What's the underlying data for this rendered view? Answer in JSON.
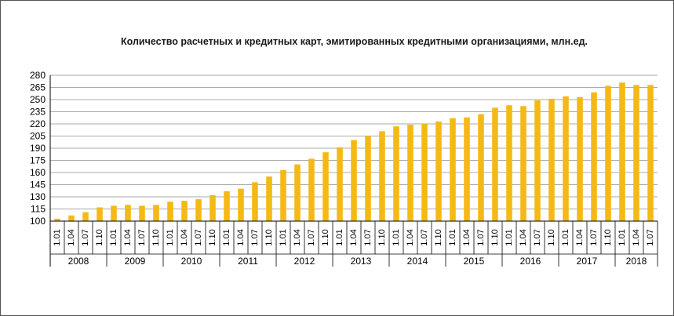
{
  "chart_data": {
    "type": "bar",
    "title": "Количество расчетных и кредитных карт, эмитированных кредитными организациями, млн.ед.",
    "xlabel": "",
    "ylabel": "",
    "ylim": [
      100,
      280
    ],
    "yticks": [
      100,
      115,
      130,
      145,
      160,
      175,
      190,
      205,
      220,
      235,
      250,
      265,
      280
    ],
    "grid": true,
    "bar_color": "#f5b915",
    "quarter_labels": [
      "1.01",
      "1.04",
      "1.07",
      "1.10"
    ],
    "groups": [
      {
        "year": "2008",
        "labels": [
          "1.01",
          "1.04",
          "1.07",
          "1.10"
        ],
        "values": [
          103,
          107,
          111,
          117
        ]
      },
      {
        "year": "2009",
        "labels": [
          "1.01",
          "1.04",
          "1.07",
          "1.10"
        ],
        "values": [
          119,
          120,
          119,
          120
        ]
      },
      {
        "year": "2010",
        "labels": [
          "1.01",
          "1.04",
          "1.07",
          "1.10"
        ],
        "values": [
          124,
          125,
          127,
          132
        ]
      },
      {
        "year": "2011",
        "labels": [
          "1.01",
          "1.04",
          "1.07",
          "1.10"
        ],
        "values": [
          137,
          140,
          148,
          155
        ]
      },
      {
        "year": "2012",
        "labels": [
          "1.01",
          "1.04",
          "1.07",
          "1.10"
        ],
        "values": [
          163,
          170,
          177,
          185
        ]
      },
      {
        "year": "2013",
        "labels": [
          "1.01",
          "1.04",
          "1.07",
          "1.10"
        ],
        "values": [
          191,
          200,
          205,
          211
        ]
      },
      {
        "year": "2014",
        "labels": [
          "1.01",
          "1.04",
          "1.07",
          "1.10"
        ],
        "values": [
          217,
          219,
          220,
          223
        ]
      },
      {
        "year": "2015",
        "labels": [
          "1.01",
          "1.04",
          "1.07",
          "1.10"
        ],
        "values": [
          227,
          228,
          232,
          240
        ]
      },
      {
        "year": "2016",
        "labels": [
          "1.01",
          "1.04",
          "1.07",
          "1.10"
        ],
        "values": [
          243,
          242,
          249,
          251
        ]
      },
      {
        "year": "2017",
        "labels": [
          "1.01",
          "1.04",
          "1.07",
          "1.10"
        ],
        "values": [
          254,
          253,
          259,
          267
        ]
      },
      {
        "year": "2018",
        "labels": [
          "1.01",
          "1.04",
          "1.07"
        ],
        "values": [
          271,
          268,
          268
        ]
      }
    ]
  }
}
